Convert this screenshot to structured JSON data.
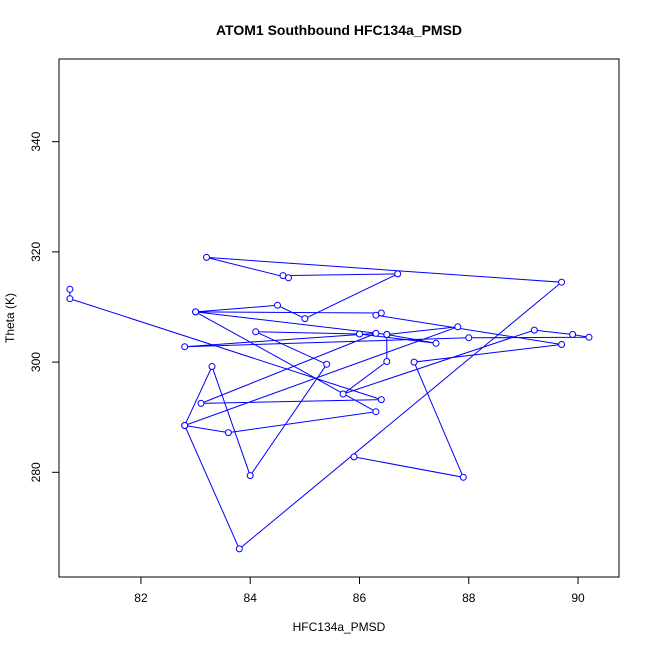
{
  "chart_data": {
    "type": "line",
    "title": "ATOM1 Southbound HFC134a_PMSD",
    "xlabel": "HFC134a_PMSD",
    "ylabel": "Theta (K)",
    "xlim": [
      80.5,
      90.75
    ],
    "ylim": [
      261,
      355
    ],
    "xticks": [
      82,
      84,
      86,
      88,
      90
    ],
    "yticks": [
      280,
      300,
      320,
      340
    ],
    "grid": false,
    "line_color": "#0000ff",
    "marker": "open-circle",
    "series": [
      {
        "x": [
          80.7,
          80.7,
          86.4,
          83.1,
          86.3,
          82.8,
          88.0,
          90.2,
          89.9,
          89.2,
          85.7,
          86.5,
          86.5,
          87.4,
          86.0,
          84.1,
          85.4,
          84.0,
          83.3,
          82.8,
          87.8,
          86.5,
          83.0,
          84.5,
          85.0,
          86.7,
          84.6,
          84.7,
          83.2,
          89.7,
          83.8,
          82.8,
          83.6,
          86.3,
          83.0,
          86.4,
          86.3,
          89.7,
          87.0,
          87.9,
          85.9
        ],
        "y": [
          313.2,
          311.5,
          293.2,
          292.5,
          305.2,
          302.8,
          304.4,
          304.5,
          305.0,
          305.8,
          294.2,
          300.1,
          305.0,
          303.4,
          305.1,
          305.5,
          299.6,
          279.4,
          299.2,
          288.5,
          306.4,
          305.0,
          309.1,
          310.3,
          307.9,
          316.0,
          315.7,
          315.3,
          319.0,
          314.5,
          266.1,
          288.5,
          287.2,
          291.0,
          309.1,
          308.9,
          308.5,
          303.2,
          300.0,
          279.1,
          282.8
        ]
      }
    ]
  }
}
